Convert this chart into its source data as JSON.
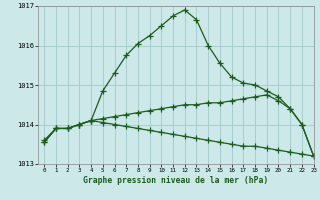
{
  "title": "Graphe pression niveau de la mer (hPa)",
  "bg_color": "#cce8e8",
  "grid_color": "#aacccc",
  "line_color": "#1a5c1a",
  "hours": [
    0,
    1,
    2,
    3,
    4,
    5,
    6,
    7,
    8,
    9,
    10,
    11,
    12,
    13,
    14,
    15,
    16,
    17,
    18,
    19,
    20,
    21,
    22,
    23
  ],
  "series1": [
    1013.6,
    1013.9,
    1013.9,
    1014.0,
    1014.1,
    1014.85,
    1015.3,
    1015.75,
    1016.05,
    1016.25,
    1016.5,
    1016.75,
    1016.9,
    1016.65,
    1016.0,
    1015.55,
    1015.2,
    1015.05,
    1015.0,
    1014.85,
    1014.7,
    1014.4,
    1014.0,
    1013.2
  ],
  "series2": [
    1013.55,
    1013.9,
    1013.9,
    1014.0,
    1014.1,
    1014.15,
    1014.2,
    1014.25,
    1014.3,
    1014.35,
    1014.4,
    1014.45,
    1014.5,
    1014.5,
    1014.55,
    1014.55,
    1014.6,
    1014.65,
    1014.7,
    1014.75,
    1014.6,
    1014.4,
    1014.0,
    1013.2
  ],
  "series3": [
    1013.55,
    1013.9,
    1013.9,
    1014.0,
    1014.1,
    1014.05,
    1014.0,
    1013.95,
    1013.9,
    1013.85,
    1013.8,
    1013.75,
    1013.7,
    1013.65,
    1013.6,
    1013.55,
    1013.5,
    1013.45,
    1013.45,
    1013.4,
    1013.35,
    1013.3,
    1013.25,
    1013.2
  ],
  "ylim": [
    1013.0,
    1017.0
  ],
  "yticks": [
    1013,
    1014,
    1015,
    1016,
    1017
  ],
  "xlim": [
    -0.5,
    23
  ],
  "figsize": [
    3.2,
    2.0
  ],
  "dpi": 100
}
